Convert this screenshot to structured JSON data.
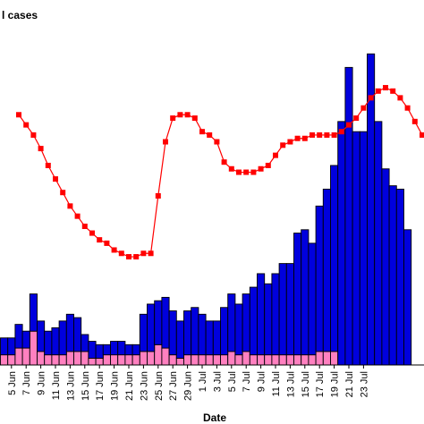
{
  "chart_data": {
    "type": "bar",
    "legend_text": "l cases",
    "xlabel": "Date",
    "x_tick_labels": [
      "5 Jun",
      "7 Jun",
      "9 Jun",
      "11 Jun",
      "13 Jun",
      "15 Jun",
      "17 Jun",
      "19 Jun",
      "21 Jun",
      "23 Jun",
      "25 Jun",
      "27 Jun",
      "29 Jun",
      "1 Jul",
      "3 Jul",
      "5 Jul",
      "7 Jul",
      "9 Jul",
      "11 Jul",
      "13 Jul",
      "15 Jul",
      "17 Jul",
      "19 Jul",
      "21 Jul",
      "23 Jul"
    ],
    "ylim": [
      0,
      100
    ],
    "line_ylim": [
      0,
      100
    ],
    "grid": false,
    "series": [
      {
        "color": "#ff80c0",
        "values": [
          3,
          3,
          5,
          5,
          10,
          4,
          3,
          3,
          3,
          4,
          4,
          4,
          2,
          2,
          3,
          3,
          3,
          3,
          3,
          4,
          4,
          6,
          5,
          3,
          2,
          3,
          3,
          3,
          3,
          3,
          3,
          4,
          3,
          4,
          3,
          3,
          3,
          3,
          3,
          3,
          3,
          3,
          3,
          4,
          4,
          4,
          0,
          0,
          0,
          0,
          0,
          0,
          0,
          0,
          0,
          0
        ]
      },
      {
        "color": "#0000dd",
        "values": [
          5,
          5,
          7,
          5,
          11,
          9,
          7,
          8,
          10,
          11,
          10,
          5,
          5,
          4,
          3,
          4,
          4,
          3,
          3,
          11,
          14,
          13,
          15,
          13,
          11,
          13,
          14,
          12,
          10,
          10,
          14,
          17,
          15,
          17,
          20,
          24,
          21,
          24,
          27,
          27,
          36,
          37,
          33,
          43,
          48,
          55,
          72,
          88,
          69,
          69,
          92,
          72,
          58,
          53,
          52,
          40
        ]
      }
    ],
    "line": {
      "color": "#ff0000",
      "values": [
        74,
        71,
        68,
        64,
        59,
        55,
        51,
        47,
        44,
        41,
        39,
        37,
        36,
        34,
        33,
        32,
        32,
        33,
        33,
        50,
        66,
        73,
        74,
        74,
        73,
        69,
        68,
        66,
        60,
        58,
        57,
        57,
        57,
        58,
        59,
        62,
        65,
        66,
        67,
        67,
        68,
        68,
        68,
        68,
        69,
        71,
        73,
        76,
        79,
        81,
        82,
        81,
        79,
        76,
        72,
        68
      ]
    }
  }
}
